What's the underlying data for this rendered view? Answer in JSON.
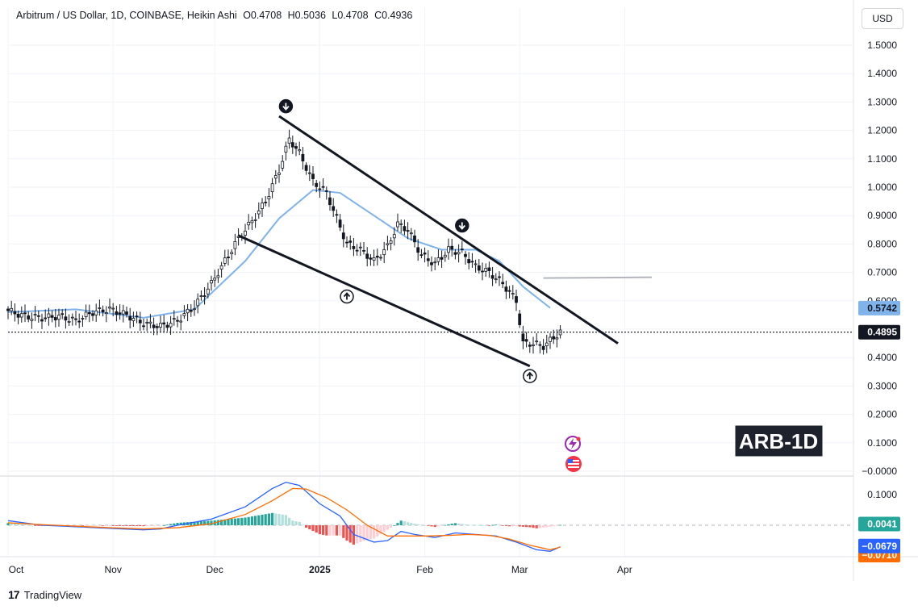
{
  "header": {
    "symbol": "Arbitrum / US Dollar, 1D, COINBASE, Heikin Ashi",
    "open": "O0.4708",
    "high": "H0.5036",
    "low": "L0.4708",
    "close": "C0.4936"
  },
  "currency_label": "USD",
  "watermark_label": "ARB-1D",
  "footer": {
    "brand": "TradingView",
    "logo_glyph": "17"
  },
  "price_badges": {
    "last": "0.4895",
    "ma": "0.5742",
    "hist": "0.0041",
    "macd": "−0.0679",
    "signal": "−0.0710"
  },
  "colors": {
    "up": "#089981",
    "down": "#f23645",
    "ma": "#7fb3ea",
    "macd": "#2962ff",
    "signal": "#ff6d00",
    "hist_up": "#26a69a",
    "hist_down": "#ef5350"
  },
  "chart_data": [
    {
      "type": "candlestick",
      "title": "Arbitrum / US Dollar, 1D, COINBASE, Heikin Ashi",
      "x_ticks": [
        "Oct",
        "Nov",
        "Dec",
        "2025",
        "Feb",
        "Mar",
        "Apr"
      ],
      "y_ticks": [
        "1.5000",
        "1.4000",
        "1.3000",
        "1.2000",
        "1.1000",
        "1.0000",
        "0.9000",
        "0.8000",
        "0.7000",
        "0.6000",
        "0.5000",
        "0.4000",
        "0.3000",
        "0.2000",
        "0.1000",
        "−0.0000"
      ],
      "ylim": [
        -0.0,
        1.55
      ],
      "series": [
        {
          "name": "Heikin Ashi",
          "close_path": [
            [
              0,
              0.565
            ],
            [
              5,
              0.545
            ],
            [
              10,
              0.54
            ],
            [
              15,
              0.545
            ],
            [
              20,
              0.53
            ],
            [
              25,
              0.56
            ],
            [
              30,
              0.57
            ],
            [
              35,
              0.55
            ],
            [
              40,
              0.52
            ],
            [
              45,
              0.51
            ],
            [
              50,
              0.53
            ],
            [
              55,
              0.58
            ],
            [
              60,
              0.66
            ],
            [
              64,
              0.74
            ],
            [
              68,
              0.82
            ],
            [
              72,
              0.88
            ],
            [
              76,
              0.95
            ],
            [
              80,
              1.06
            ],
            [
              83,
              1.17
            ],
            [
              86,
              1.12
            ],
            [
              90,
              1.02
            ],
            [
              94,
              0.98
            ],
            [
              97,
              0.89
            ],
            [
              100,
              0.8
            ],
            [
              104,
              0.78
            ],
            [
              108,
              0.74
            ],
            [
              112,
              0.79
            ],
            [
              115,
              0.87
            ],
            [
              118,
              0.85
            ],
            [
              122,
              0.76
            ],
            [
              126,
              0.73
            ],
            [
              130,
              0.78
            ],
            [
              134,
              0.77
            ],
            [
              138,
              0.72
            ],
            [
              142,
              0.7
            ],
            [
              146,
              0.66
            ],
            [
              150,
              0.6
            ],
            [
              152,
              0.45
            ],
            [
              155,
              0.45
            ],
            [
              158,
              0.44
            ],
            [
              161,
              0.47
            ],
            [
              163,
              0.49
            ]
          ]
        }
      ],
      "moving_average": {
        "last": 0.5742,
        "path": [
          [
            0,
            0.56
          ],
          [
            20,
            0.57
          ],
          [
            40,
            0.54
          ],
          [
            55,
            0.57
          ],
          [
            70,
            0.74
          ],
          [
            80,
            0.89
          ],
          [
            90,
            0.99
          ],
          [
            98,
            0.98
          ],
          [
            108,
            0.9
          ],
          [
            118,
            0.82
          ],
          [
            128,
            0.78
          ],
          [
            138,
            0.78
          ],
          [
            145,
            0.74
          ],
          [
            152,
            0.65
          ],
          [
            160,
            0.575
          ]
        ]
      },
      "trendlines": [
        {
          "name": "upper",
          "from": [
            80,
            1.25
          ],
          "to": [
            180,
            0.45
          ]
        },
        {
          "name": "lower",
          "from": [
            68,
            0.83
          ],
          "to": [
            154,
            0.37
          ]
        },
        {
          "name": "resistance",
          "from": [
            158,
            0.68
          ],
          "to": [
            190,
            0.683
          ]
        }
      ],
      "last_price": 0.4895,
      "watermark": "ARB-1D"
    },
    {
      "type": "macd",
      "y_ticks": [
        "0.1000"
      ],
      "macd": [
        [
          0,
          0.015
        ],
        [
          10,
          0.0
        ],
        [
          20,
          -0.005
        ],
        [
          30,
          -0.01
        ],
        [
          40,
          -0.015
        ],
        [
          45,
          -0.012
        ],
        [
          50,
          0.0
        ],
        [
          60,
          0.02
        ],
        [
          70,
          0.06
        ],
        [
          78,
          0.12
        ],
        [
          82,
          0.14
        ],
        [
          86,
          0.13
        ],
        [
          92,
          0.07
        ],
        [
          98,
          0.03
        ],
        [
          102,
          -0.03
        ],
        [
          108,
          -0.055
        ],
        [
          112,
          -0.05
        ],
        [
          116,
          -0.02
        ],
        [
          120,
          -0.03
        ],
        [
          126,
          -0.04
        ],
        [
          132,
          -0.025
        ],
        [
          138,
          -0.03
        ],
        [
          144,
          -0.035
        ],
        [
          150,
          -0.055
        ],
        [
          156,
          -0.08
        ],
        [
          160,
          -0.085
        ],
        [
          163,
          -0.07
        ]
      ],
      "signal": [
        [
          0,
          0.008
        ],
        [
          10,
          0.002
        ],
        [
          20,
          -0.003
        ],
        [
          30,
          -0.008
        ],
        [
          40,
          -0.012
        ],
        [
          50,
          -0.008
        ],
        [
          60,
          0.005
        ],
        [
          70,
          0.035
        ],
        [
          78,
          0.08
        ],
        [
          84,
          0.12
        ],
        [
          88,
          0.118
        ],
        [
          94,
          0.09
        ],
        [
          100,
          0.05
        ],
        [
          106,
          0.0
        ],
        [
          112,
          -0.035
        ],
        [
          118,
          -0.035
        ],
        [
          124,
          -0.035
        ],
        [
          130,
          -0.033
        ],
        [
          136,
          -0.03
        ],
        [
          142,
          -0.033
        ],
        [
          148,
          -0.045
        ],
        [
          154,
          -0.065
        ],
        [
          160,
          -0.08
        ],
        [
          163,
          -0.071
        ]
      ],
      "last": {
        "hist": 0.0041,
        "macd": -0.0679,
        "signal": -0.071
      }
    }
  ]
}
